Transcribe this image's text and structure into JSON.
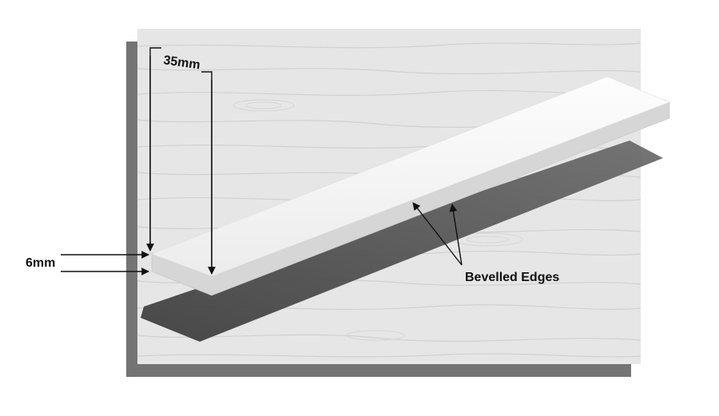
{
  "labels": {
    "width": "35mm",
    "thickness": "6mm",
    "edges": "Bevelled Edges"
  },
  "colors": {
    "background": "#ffffff",
    "board_shadow": "#747474",
    "wood": "#e6e6e6",
    "grain": "#cfcfcf",
    "strip_top": "#f7f7f7",
    "strip_side": "#d6d6d6",
    "cast_shadow": "#585858",
    "annotation": "#111111"
  }
}
